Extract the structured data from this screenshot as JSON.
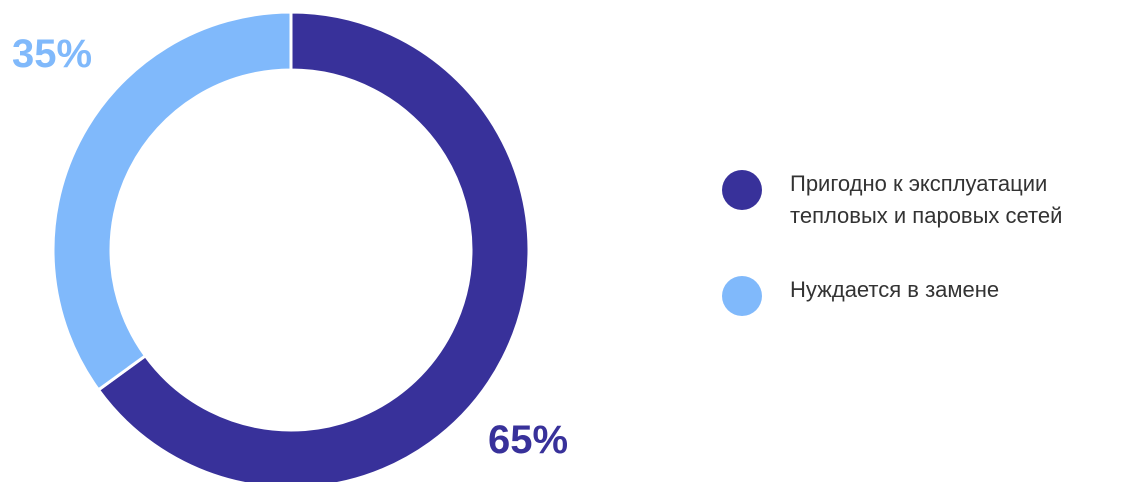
{
  "colors": {
    "dark": "#38319a",
    "light": "#80b9fb",
    "text": "#333333"
  },
  "chart_data": {
    "type": "pie",
    "subtype": "donut",
    "slices": [
      {
        "label": "Пригодно к эксплуатации тепловых и паровых сетей",
        "value": 65,
        "value_label": "65%",
        "color": "#38319a"
      },
      {
        "label": "Нуждается в замене",
        "value": 35,
        "value_label": "35%",
        "color": "#80b9fb"
      }
    ],
    "legend_placement": "right"
  },
  "legend": {
    "items": [
      {
        "text": "Пригодно к эксплуатации\nтепловых и паровых сетей",
        "color": "#38319a"
      },
      {
        "text": "Нуждается в замене",
        "color": "#80b9fb"
      }
    ]
  }
}
